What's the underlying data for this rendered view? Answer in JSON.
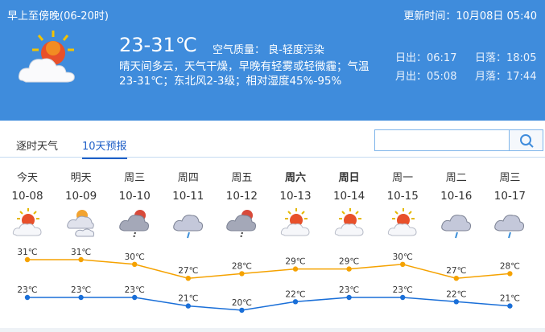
{
  "header": {
    "period": "早上至傍晚(06-20时)",
    "update_time": "更新时间：10月08日 05:40",
    "temp_range": "23-31℃",
    "air_quality": "空气质量： 良-轻度污染",
    "description": "晴天间多云，天气干燥，早晚有轻雾或轻微霾；气温23-31℃；东北风2-3级；相对湿度45%-95%",
    "icon": "sunny-cloudy-icon",
    "sunrise": "日出：06:17",
    "sunset": "日落：18:05",
    "moonrise": "月出：05:08",
    "moonset": "月落：17:44"
  },
  "tabs": [
    {
      "label": "逐时天气",
      "active": false
    },
    {
      "label": "10天预报",
      "active": true
    }
  ],
  "search": {
    "value": "",
    "placeholder": ""
  },
  "colors": {
    "header_bg": "#3f8cdc",
    "high_line": "#f5a200",
    "low_line": "#1a6fd8",
    "active_tab": "#1f5fc7"
  },
  "forecast": [
    {
      "day": "今天",
      "date": "10-08",
      "icon": "sunny-cloudy",
      "high": "31℃",
      "low": "23℃",
      "hi": 31,
      "lo": 23,
      "bold": false
    },
    {
      "day": "明天",
      "date": "10-09",
      "icon": "cloudy",
      "high": "31℃",
      "low": "23℃",
      "hi": 31,
      "lo": 23,
      "bold": false
    },
    {
      "day": "周三",
      "date": "10-10",
      "icon": "thunder-shower",
      "high": "30℃",
      "low": "23℃",
      "hi": 30,
      "lo": 23,
      "bold": false
    },
    {
      "day": "周四",
      "date": "10-11",
      "icon": "shower",
      "high": "27℃",
      "low": "21℃",
      "hi": 27,
      "lo": 21,
      "bold": false
    },
    {
      "day": "周五",
      "date": "10-12",
      "icon": "thunder-shower",
      "high": "28℃",
      "low": "20℃",
      "hi": 28,
      "lo": 20,
      "bold": false
    },
    {
      "day": "周六",
      "date": "10-13",
      "icon": "sunny-cloudy",
      "high": "29℃",
      "low": "22℃",
      "hi": 29,
      "lo": 22,
      "bold": true
    },
    {
      "day": "周日",
      "date": "10-14",
      "icon": "sunny-cloudy",
      "high": "29℃",
      "low": "23℃",
      "hi": 29,
      "lo": 23,
      "bold": true
    },
    {
      "day": "周一",
      "date": "10-15",
      "icon": "sunny-cloudy",
      "high": "30℃",
      "low": "23℃",
      "hi": 30,
      "lo": 23,
      "bold": false
    },
    {
      "day": "周二",
      "date": "10-16",
      "icon": "shower",
      "high": "27℃",
      "low": "22℃",
      "hi": 27,
      "lo": 22,
      "bold": false
    },
    {
      "day": "周三",
      "date": "10-17",
      "icon": "shower",
      "high": "28℃",
      "low": "21℃",
      "hi": 28,
      "lo": 21,
      "bold": false
    }
  ]
}
